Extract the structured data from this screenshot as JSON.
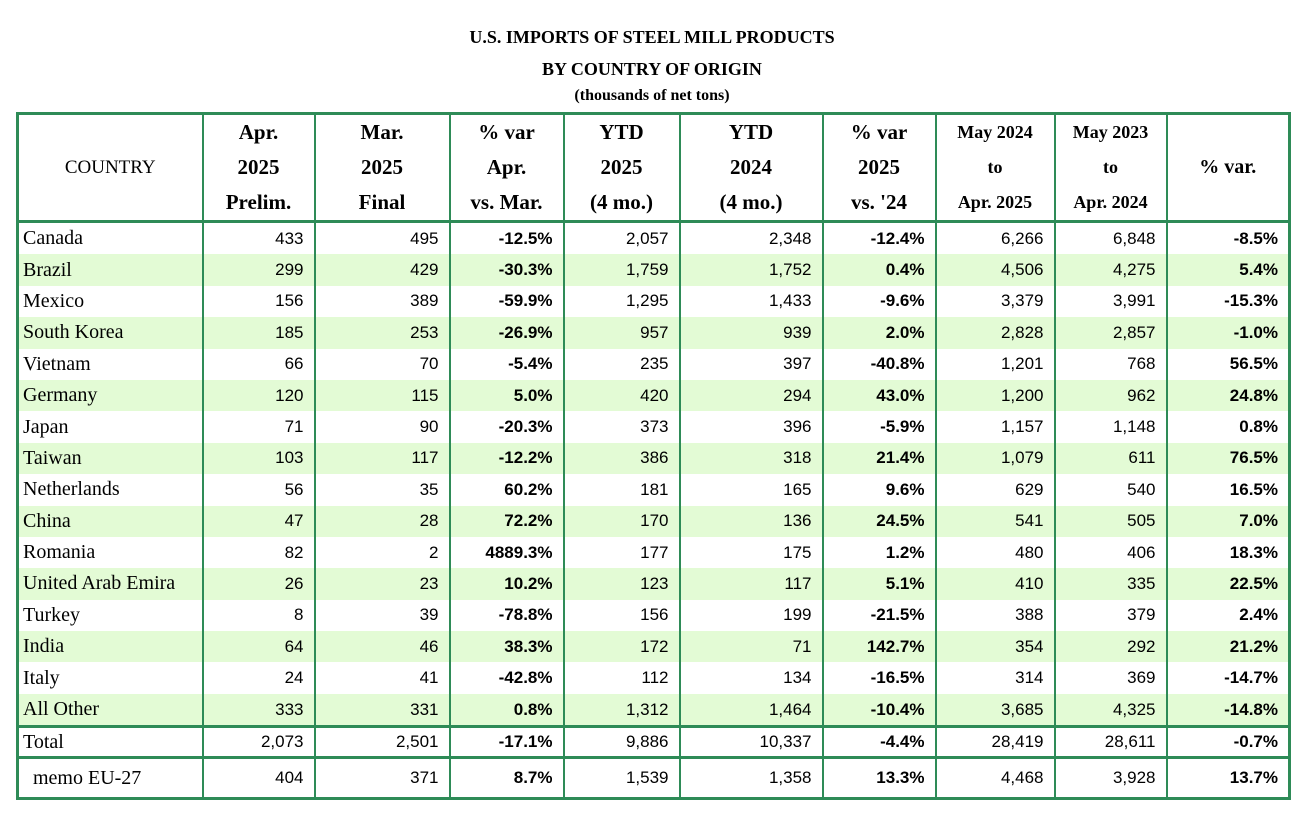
{
  "title": {
    "line1": "U.S. IMPORTS OF STEEL MILL PRODUCTS",
    "line2": "BY COUNTRY OF ORIGIN",
    "line3": "(thousands of net tons)"
  },
  "headers": [
    [
      "COUNTRY"
    ],
    [
      "Apr.",
      "2025",
      "Prelim."
    ],
    [
      "Mar.",
      "2025",
      "Final"
    ],
    [
      "% var",
      "Apr.",
      "vs. Mar."
    ],
    [
      "YTD",
      "2025",
      "(4 mo.)"
    ],
    [
      "YTD",
      "2024",
      "(4 mo.)"
    ],
    [
      "% var",
      "2025",
      "vs. '24"
    ],
    [
      "May 2024",
      "to",
      "Apr. 2025"
    ],
    [
      "May 2023",
      "to",
      "Apr. 2024"
    ],
    [
      "% var."
    ]
  ],
  "rows": [
    [
      "Canada",
      "433",
      "495",
      "-12.5%",
      "2,057",
      "2,348",
      "-12.4%",
      "6,266",
      "6,848",
      "-8.5%"
    ],
    [
      "Brazil",
      "299",
      "429",
      "-30.3%",
      "1,759",
      "1,752",
      "0.4%",
      "4,506",
      "4,275",
      "5.4%"
    ],
    [
      "Mexico",
      "156",
      "389",
      "-59.9%",
      "1,295",
      "1,433",
      "-9.6%",
      "3,379",
      "3,991",
      "-15.3%"
    ],
    [
      "South Korea",
      "185",
      "253",
      "-26.9%",
      "957",
      "939",
      "2.0%",
      "2,828",
      "2,857",
      "-1.0%"
    ],
    [
      "Vietnam",
      "66",
      "70",
      "-5.4%",
      "235",
      "397",
      "-40.8%",
      "1,201",
      "768",
      "56.5%"
    ],
    [
      "Germany",
      "120",
      "115",
      "5.0%",
      "420",
      "294",
      "43.0%",
      "1,200",
      "962",
      "24.8%"
    ],
    [
      "Japan",
      "71",
      "90",
      "-20.3%",
      "373",
      "396",
      "-5.9%",
      "1,157",
      "1,148",
      "0.8%"
    ],
    [
      "Taiwan",
      "103",
      "117",
      "-12.2%",
      "386",
      "318",
      "21.4%",
      "1,079",
      "611",
      "76.5%"
    ],
    [
      "Netherlands",
      "56",
      "35",
      "60.2%",
      "181",
      "165",
      "9.6%",
      "629",
      "540",
      "16.5%"
    ],
    [
      "China",
      "47",
      "28",
      "72.2%",
      "170",
      "136",
      "24.5%",
      "541",
      "505",
      "7.0%"
    ],
    [
      "Romania",
      "82",
      "2",
      "4889.3%",
      "177",
      "175",
      "1.2%",
      "480",
      "406",
      "18.3%"
    ],
    [
      "United Arab Emira",
      "26",
      "23",
      "10.2%",
      "123",
      "117",
      "5.1%",
      "410",
      "335",
      "22.5%"
    ],
    [
      "Turkey",
      "8",
      "39",
      "-78.8%",
      "156",
      "199",
      "-21.5%",
      "388",
      "379",
      "2.4%"
    ],
    [
      "India",
      "64",
      "46",
      "38.3%",
      "172",
      "71",
      "142.7%",
      "354",
      "292",
      "21.2%"
    ],
    [
      "Italy",
      "24",
      "41",
      "-42.8%",
      "112",
      "134",
      "-16.5%",
      "314",
      "369",
      "-14.7%"
    ],
    [
      "All Other",
      "333",
      "331",
      "0.8%",
      "1,312",
      "1,464",
      "-10.4%",
      "3,685",
      "4,325",
      "-14.8%"
    ]
  ],
  "total": [
    "Total",
    "2,073",
    "2,501",
    "-17.1%",
    "9,886",
    "10,337",
    "-4.4%",
    "28,419",
    "28,611",
    "-0.7%"
  ],
  "memo": [
    "memo EU-27",
    "404",
    "371",
    "8.7%",
    "1,539",
    "1,358",
    "13.3%",
    "4,468",
    "3,928",
    "13.7%"
  ],
  "colors": {
    "border": "#2e8b57",
    "shade": "#e3fbd5"
  }
}
